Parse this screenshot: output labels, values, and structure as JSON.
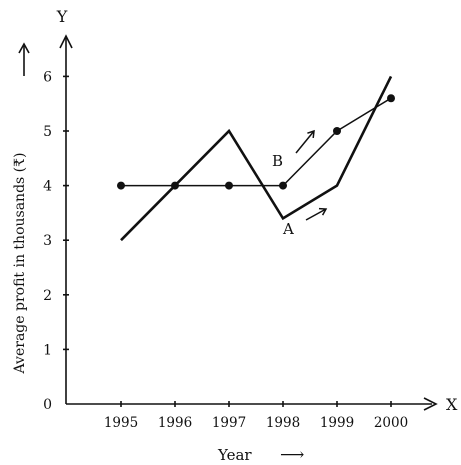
{
  "chart_data": {
    "type": "line",
    "title": "",
    "xlabel": "Year",
    "ylabel": "Average profit in thousands (₹)",
    "x_axis_letter": "X",
    "y_axis_letter": "Y",
    "origin_label": "0",
    "categories": [
      "1995",
      "1996",
      "1997",
      "1998",
      "1999",
      "2000"
    ],
    "y_ticks": [
      "1",
      "2",
      "3",
      "4",
      "5",
      "6"
    ],
    "ylim": [
      0,
      6.6
    ],
    "series": [
      {
        "name": "A",
        "values": [
          3,
          4,
          5,
          3.4,
          4,
          6
        ],
        "markers": false
      },
      {
        "name": "B",
        "values": [
          4,
          4,
          4,
          4,
          5,
          5.6
        ],
        "markers": true
      }
    ],
    "arrow_glyph": "⟶",
    "grid": false,
    "legend": "inline labels"
  }
}
